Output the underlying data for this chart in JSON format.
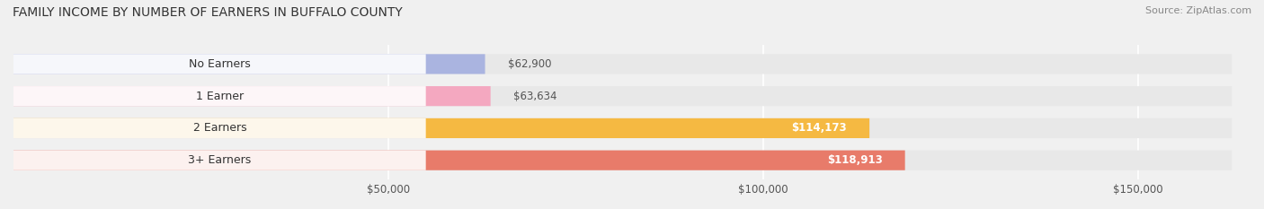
{
  "title": "FAMILY INCOME BY NUMBER OF EARNERS IN BUFFALO COUNTY",
  "source": "Source: ZipAtlas.com",
  "categories": [
    "No Earners",
    "1 Earner",
    "2 Earners",
    "3+ Earners"
  ],
  "values": [
    62900,
    63634,
    114173,
    118913
  ],
  "bar_colors": [
    "#aab4e0",
    "#f4a8c0",
    "#f5b942",
    "#e87b6a"
  ],
  "label_colors": [
    "#555555",
    "#555555",
    "#ffffff",
    "#ffffff"
  ],
  "bg_color": "#f0f0f0",
  "bar_bg_color": "#e8e8e8",
  "xlim_min": 0,
  "xlim_max": 165000,
  "x_ticks": [
    50000,
    100000,
    150000
  ],
  "x_tick_labels": [
    "$50,000",
    "$100,000",
    "$150,000"
  ],
  "figsize": [
    14.06,
    2.33
  ],
  "dpi": 100
}
